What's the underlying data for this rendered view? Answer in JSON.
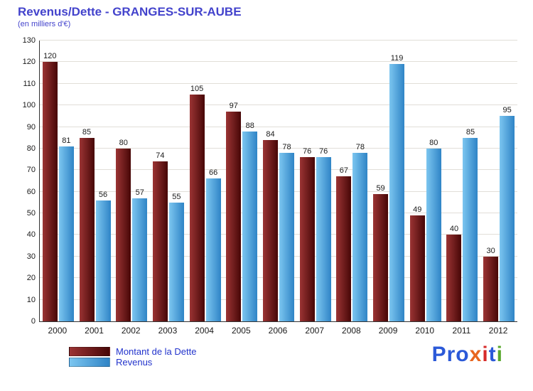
{
  "title": "Revenus/Dette - GRANGES-SUR-AUBE",
  "subtitle": "(en milliers d'€)",
  "chart_data": {
    "type": "bar",
    "categories": [
      "2000",
      "2001",
      "2002",
      "2003",
      "2004",
      "2005",
      "2006",
      "2007",
      "2008",
      "2009",
      "2010",
      "2011",
      "2012"
    ],
    "series": [
      {
        "name": "Montant de la Dette",
        "color_start": "#9b3434",
        "color_end": "#470707",
        "values": [
          120,
          85,
          80,
          74,
          105,
          97,
          84,
          76,
          67,
          59,
          49,
          40,
          30
        ]
      },
      {
        "name": "Revenus",
        "color_start": "#7cc6f0",
        "color_end": "#2f84c6",
        "values": [
          81,
          56,
          57,
          55,
          66,
          88,
          78,
          76,
          78,
          119,
          80,
          85,
          95
        ]
      }
    ],
    "ylim": [
      0,
      130
    ],
    "ytick_step": 10,
    "grid": true,
    "value_labels": true,
    "legend_position": "bottom-left"
  },
  "legend": {
    "dette": "Montant de la Dette",
    "revenus": "Revenus"
  },
  "logo": {
    "letters": [
      {
        "ch": "P",
        "color": "#2b59d8"
      },
      {
        "ch": "r",
        "color": "#2b59d8"
      },
      {
        "ch": "o",
        "color": "#2b59d8"
      },
      {
        "ch": "x",
        "color": "#e8651e"
      },
      {
        "ch": "i",
        "color": "#d62a2a"
      },
      {
        "ch": "t",
        "color": "#2b59d8"
      },
      {
        "ch": "i",
        "color": "#59a82d"
      }
    ]
  },
  "colors": {
    "title": "#4343cc",
    "legend_text": "#2233cc",
    "axis": "#333333",
    "value_label": "#1a1a1a",
    "background_top": "#f4eedc",
    "background_bottom": "#c2b191"
  }
}
